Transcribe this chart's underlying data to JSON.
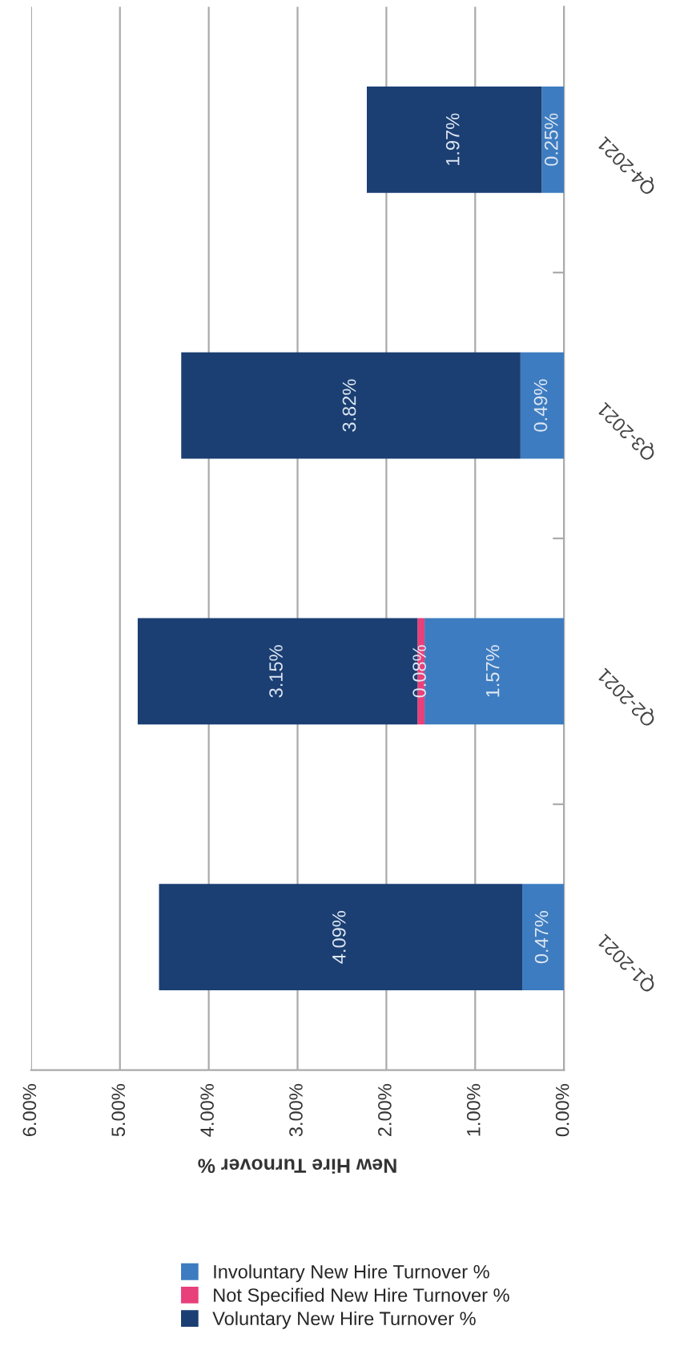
{
  "chart_data": {
    "type": "bar",
    "orientation": "horizontal",
    "stacked": true,
    "categories": [
      "Q4-2021",
      "Q3-2021",
      "Q2-2021",
      "Q1-2021"
    ],
    "series": [
      {
        "name": "Involuntary New Hire Turnover %",
        "color": "#3d7cc0",
        "values": [
          0.25,
          0.49,
          1.57,
          0.47
        ],
        "value_labels": [
          "0.25%",
          "0.49%",
          "1.57%",
          "0.47%"
        ]
      },
      {
        "name": "Not Specified New Hire Turnover %",
        "color": "#e8407a",
        "values": [
          null,
          null,
          0.08,
          null
        ],
        "value_labels": [
          null,
          null,
          "0.08%",
          null
        ]
      },
      {
        "name": "Voluntary New Hire Turnover %",
        "color": "#1b3f73",
        "values": [
          1.97,
          3.82,
          3.15,
          4.09
        ],
        "value_labels": [
          "1.97%",
          "3.82%",
          "3.15%",
          "4.09%"
        ]
      }
    ],
    "xlabel": "New Hire Turnover %",
    "xlim": [
      6,
      0
    ],
    "xticks": [
      {
        "value": 6,
        "label": "6.00%"
      },
      {
        "value": 5,
        "label": "5.00%"
      },
      {
        "value": 4,
        "label": "4.00%"
      },
      {
        "value": 3,
        "label": "3.00%"
      },
      {
        "value": 2,
        "label": "2.00%"
      },
      {
        "value": 1,
        "label": "1.00%"
      },
      {
        "value": 0,
        "label": "0.00%"
      }
    ],
    "grid": "x",
    "legend": "bottom"
  }
}
